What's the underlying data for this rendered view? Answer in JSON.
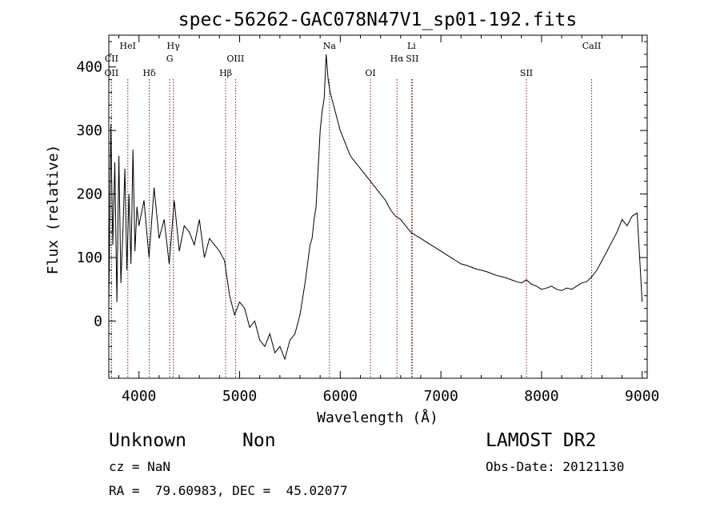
{
  "chart_data": {
    "type": "line",
    "title": "spec-56262-GAC078N47V1_sp01-192.fits",
    "xlabel": "Wavelength (Å)",
    "ylabel": "Flux (relative)",
    "xlim": [
      3700,
      9050
    ],
    "ylim": [
      -90,
      450
    ],
    "x_ticks": [
      4000,
      5000,
      6000,
      7000,
      8000,
      9000
    ],
    "y_ticks": [
      0,
      100,
      200,
      300,
      400
    ],
    "grid": false,
    "line_color": "#000000",
    "marker_color": "#8b1a1a",
    "spectral_lines": [
      {
        "label": "HeI",
        "x": 3889,
        "row": 1
      },
      {
        "label": "CII",
        "x": 3727,
        "row": 2
      },
      {
        "label": "OII",
        "x": 3727,
        "row": 3
      },
      {
        "label": "Hδ",
        "x": 4102,
        "row": 3
      },
      {
        "label": "Hγ",
        "x": 4341,
        "row": 1
      },
      {
        "label": "G",
        "x": 4305,
        "row": 2
      },
      {
        "label": "Hβ",
        "x": 4861,
        "row": 3
      },
      {
        "label": "OIII",
        "x": 4959,
        "row": 2
      },
      {
        "label": "Na",
        "x": 5893,
        "row": 1
      },
      {
        "label": "OI",
        "x": 6300,
        "row": 3
      },
      {
        "label": "Hα",
        "x": 6563,
        "row": 2
      },
      {
        "label": "SII",
        "x": 6716,
        "row": 2
      },
      {
        "label": "Li",
        "x": 6708,
        "row": 1
      },
      {
        "label": "SII",
        "x": 7850,
        "row": 3
      },
      {
        "label": "CaII",
        "x": 8498,
        "row": 1
      }
    ],
    "series": [
      {
        "x": [
          3700,
          3720,
          3740,
          3760,
          3780,
          3800,
          3820,
          3840,
          3860,
          3880,
          3900,
          3920,
          3940,
          3960,
          3980,
          4000,
          4050,
          4100,
          4150,
          4200,
          4250,
          4300,
          4350,
          4400,
          4450,
          4500,
          4550,
          4600,
          4650,
          4700,
          4750,
          4800,
          4850,
          4900,
          4950,
          5000,
          5050,
          5100,
          5150,
          5200,
          5250,
          5300,
          5350,
          5400,
          5450,
          5500,
          5550,
          5600,
          5650,
          5700,
          5720,
          5740,
          5760,
          5780,
          5800,
          5820,
          5840,
          5860,
          5880,
          5900,
          5950,
          6000,
          6050,
          6100,
          6150,
          6200,
          6250,
          6300,
          6350,
          6400,
          6450,
          6500,
          6550,
          6600,
          6650,
          6700,
          6750,
          6800,
          6850,
          6900,
          6950,
          7000,
          7050,
          7100,
          7150,
          7200,
          7250,
          7300,
          7350,
          7400,
          7450,
          7500,
          7550,
          7600,
          7650,
          7700,
          7750,
          7800,
          7850,
          7900,
          7950,
          8000,
          8050,
          8100,
          8150,
          8200,
          8250,
          8300,
          8350,
          8400,
          8450,
          8500,
          8550,
          8600,
          8650,
          8700,
          8750,
          8800,
          8850,
          8900,
          8950,
          9000
        ],
        "values": [
          20,
          310,
          120,
          250,
          30,
          260,
          60,
          140,
          240,
          80,
          200,
          90,
          270,
          110,
          180,
          150,
          190,
          100,
          210,
          130,
          160,
          90,
          190,
          110,
          150,
          140,
          120,
          160,
          100,
          130,
          120,
          110,
          95,
          40,
          10,
          30,
          20,
          -10,
          0,
          -30,
          -40,
          -20,
          -50,
          -40,
          -60,
          -30,
          -20,
          10,
          60,
          120,
          130,
          160,
          180,
          240,
          300,
          330,
          350,
          420,
          380,
          360,
          330,
          300,
          280,
          260,
          250,
          240,
          230,
          220,
          210,
          200,
          190,
          175,
          165,
          160,
          150,
          140,
          135,
          130,
          125,
          120,
          115,
          110,
          105,
          100,
          95,
          90,
          88,
          85,
          82,
          80,
          78,
          75,
          72,
          70,
          68,
          65,
          62,
          60,
          65,
          58,
          55,
          50,
          52,
          55,
          50,
          48,
          52,
          50,
          55,
          60,
          62,
          70,
          80,
          95,
          110,
          125,
          140,
          160,
          150,
          165,
          170,
          30
        ]
      }
    ]
  },
  "info": {
    "object_class": "Unknown",
    "object_subclass": "Non",
    "survey": "LAMOST DR2",
    "cz": "cz = NaN",
    "obs_date": "Obs-Date: 20121130",
    "coords": "RA =  79.60983, DEC =  45.02077"
  }
}
